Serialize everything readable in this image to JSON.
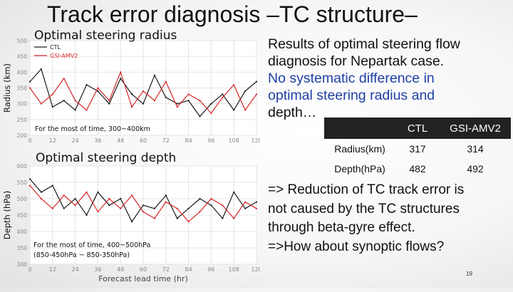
{
  "slide": {
    "title": "Track error diagnosis –TC structure–",
    "page_number": "19"
  },
  "right_text": {
    "line1": "Results of optimal steering flow",
    "line2": "diagnosis for Nepartak case.",
    "line3_blue": "No systematic difference in",
    "line4_blue": "optimal steering radius and",
    "line5": "depth…"
  },
  "table": {
    "headers": [
      "",
      "CTL",
      "GSI-AMV2"
    ],
    "rows": [
      {
        "label": "Radius(km)",
        "ctl": "317",
        "gsi": "314"
      },
      {
        "label": "Depth(hPa)",
        "ctl": "482",
        "gsi": "492"
      }
    ]
  },
  "conclusion": {
    "line1": "=> Reduction of TC track error is",
    "line2": "not caused by the TC structures",
    "line3": "through beta-gyre effect.",
    "line4": "=>How about synoptic flows?"
  },
  "colors": {
    "ctl": "#1a1a1a",
    "gsi": "#d62728"
  },
  "chart_data": [
    {
      "type": "line",
      "title": "Optimal steering radius",
      "ylabel": "Radius (km)",
      "xlabel": "",
      "annotation": "For the most of time, 300~400km",
      "x_ticks": [
        0,
        12,
        24,
        36,
        48,
        60,
        72,
        84,
        96,
        108,
        120
      ],
      "y_ticks": [
        200,
        250,
        300,
        350,
        400,
        450,
        500
      ],
      "xlim": [
        0,
        120
      ],
      "ylim": [
        200,
        500
      ],
      "series": [
        {
          "name": "CTL",
          "color": "#1a1a1a",
          "x": [
            0,
            6,
            12,
            18,
            24,
            30,
            36,
            42,
            48,
            54,
            60,
            66,
            72,
            78,
            84,
            90,
            96,
            102,
            108,
            114,
            120
          ],
          "y": [
            370,
            410,
            290,
            310,
            280,
            360,
            340,
            300,
            380,
            330,
            300,
            390,
            320,
            300,
            310,
            260,
            300,
            330,
            280,
            340,
            370
          ]
        },
        {
          "name": "GSI-AMV2",
          "color": "#d62728",
          "x": [
            0,
            6,
            12,
            18,
            24,
            30,
            36,
            42,
            48,
            54,
            60,
            66,
            72,
            78,
            84,
            90,
            96,
            102,
            108,
            114,
            120
          ],
          "y": [
            350,
            300,
            330,
            380,
            310,
            280,
            350,
            310,
            400,
            290,
            340,
            310,
            370,
            290,
            330,
            310,
            270,
            320,
            360,
            280,
            330
          ]
        }
      ]
    },
    {
      "type": "line",
      "title": "Optimal steering depth",
      "ylabel": "Depth (hPa)",
      "xlabel": "Forecast lead time (hr)",
      "annotation_line1": "For the most of time, 400~500hPa",
      "annotation_line2": "(850-450hPa ~ 850-350hPa)",
      "x_ticks": [
        0,
        12,
        24,
        36,
        48,
        60,
        72,
        84,
        96,
        108,
        120
      ],
      "y_ticks": [
        300,
        350,
        400,
        450,
        500,
        550,
        600
      ],
      "xlim": [
        0,
        120
      ],
      "ylim": [
        300,
        600
      ],
      "series": [
        {
          "name": "CTL",
          "color": "#1a1a1a",
          "x": [
            0,
            6,
            12,
            18,
            24,
            30,
            36,
            42,
            48,
            54,
            60,
            66,
            72,
            78,
            84,
            90,
            96,
            102,
            108,
            114,
            120
          ],
          "y": [
            560,
            520,
            540,
            470,
            500,
            450,
            520,
            480,
            500,
            430,
            480,
            470,
            510,
            440,
            470,
            500,
            480,
            440,
            520,
            470,
            490
          ]
        },
        {
          "name": "GSI-AMV2",
          "color": "#d62728",
          "x": [
            0,
            6,
            12,
            18,
            24,
            30,
            36,
            42,
            48,
            54,
            60,
            66,
            72,
            78,
            84,
            90,
            96,
            102,
            108,
            114,
            120
          ],
          "y": [
            540,
            500,
            470,
            510,
            480,
            520,
            460,
            500,
            470,
            510,
            460,
            440,
            490,
            470,
            430,
            460,
            500,
            480,
            440,
            490,
            470
          ]
        }
      ]
    }
  ]
}
